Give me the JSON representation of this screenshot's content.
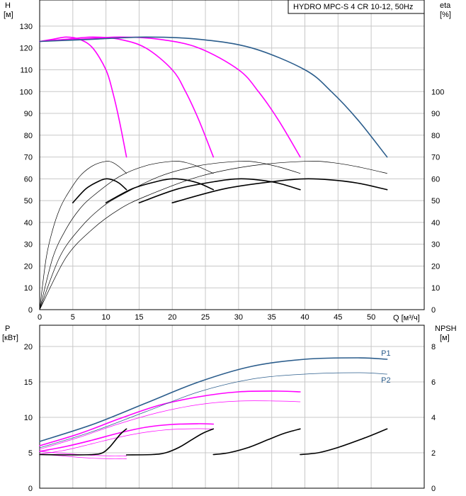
{
  "chart_data": [
    {
      "type": "line",
      "title": "HYDRO MPC-S 4 CR 10-12, 50Hz",
      "xlabel": "Q [м³/ч]",
      "ylabel": "H [м]",
      "ylabel_line1": "H",
      "ylabel_line2": "[м]",
      "y2label_line1": "eta",
      "y2label_line2": "[%]",
      "xlim": [
        0,
        58
      ],
      "ylim": [
        0,
        142
      ],
      "xticks": [
        0,
        5,
        10,
        15,
        20,
        25,
        30,
        35,
        40,
        45,
        50
      ],
      "xtick_labels": [
        "0",
        "5",
        "10",
        "15",
        "20",
        "25",
        "30",
        "35",
        "40",
        "45",
        "50"
      ],
      "yticks": [
        0,
        10,
        20,
        30,
        40,
        50,
        60,
        70,
        80,
        90,
        100,
        110,
        120,
        130
      ],
      "ytick_labels": [
        "0",
        "10",
        "20",
        "30",
        "40",
        "50",
        "60",
        "70",
        "80",
        "90",
        "100",
        "110",
        "120",
        "130"
      ],
      "y2ticks": [
        0,
        10,
        20,
        30,
        40,
        50,
        60,
        70,
        80,
        90,
        100
      ],
      "y2tick_labels": [
        "0",
        "10",
        "20",
        "30",
        "40",
        "50",
        "60",
        "70",
        "80",
        "90",
        "100"
      ],
      "series": [
        {
          "name": "H 1 pump",
          "color": "#ff00ff",
          "width": 1.6,
          "x": [
            0,
            2,
            4,
            6,
            8,
            10,
            11,
            12,
            13.1
          ],
          "y": [
            123,
            124,
            125,
            124,
            120,
            110,
            100,
            87,
            70
          ]
        },
        {
          "name": "H 2 pumps",
          "color": "#ff00ff",
          "width": 1.6,
          "x": [
            0,
            4,
            8,
            12,
            16,
            20,
            22,
            24,
            26.2
          ],
          "y": [
            123,
            124,
            125,
            124,
            120,
            110,
            100,
            87,
            70
          ]
        },
        {
          "name": "H 3 pumps",
          "color": "#ff00ff",
          "width": 1.6,
          "x": [
            0,
            6,
            12,
            18,
            24,
            30,
            33,
            36,
            39.3
          ],
          "y": [
            123,
            124,
            125,
            124,
            120,
            110,
            100,
            87,
            70
          ]
        },
        {
          "name": "H 4 pumps",
          "color": "#2b5d8c",
          "width": 1.6,
          "x": [
            0,
            8,
            16,
            24,
            32,
            40,
            44,
            48,
            52.4
          ],
          "y": [
            123,
            124,
            125,
            124,
            120,
            110,
            100,
            87,
            70
          ]
        },
        {
          "name": "eta 1 pump",
          "color": "#000000",
          "width": 0.7,
          "x": [
            0,
            1,
            2,
            3,
            4,
            6,
            8,
            10,
            11,
            12,
            13.1
          ],
          "y": [
            0,
            24,
            37,
            46,
            52,
            61,
            66,
            68,
            67.5,
            65.5,
            62.5
          ]
        },
        {
          "name": "eta 2 pumps",
          "color": "#000000",
          "width": 0.7,
          "x": [
            0,
            2,
            4,
            6,
            8,
            12,
            16,
            20,
            22,
            24,
            26.2
          ],
          "y": [
            0,
            24,
            37,
            46,
            52,
            61,
            66,
            68,
            67.5,
            65.5,
            62.5
          ]
        },
        {
          "name": "eta 3 pumps",
          "color": "#000000",
          "width": 0.7,
          "x": [
            0,
            3,
            6,
            9,
            12,
            18,
            24,
            30,
            33,
            36,
            39.3
          ],
          "y": [
            0,
            24,
            37,
            46,
            52,
            61,
            66,
            68,
            67.5,
            65.5,
            62.5
          ]
        },
        {
          "name": "eta 4 pumps",
          "color": "#000000",
          "width": 0.7,
          "x": [
            0,
            4,
            8,
            12,
            16,
            24,
            32,
            40,
            44,
            48,
            52.4
          ],
          "y": [
            0,
            24,
            37,
            46,
            52,
            61,
            66,
            68,
            67.5,
            65.5,
            62.5
          ]
        },
        {
          "name": "eta 1 pump (duty)",
          "color": "#000000",
          "width": 1.6,
          "x": [
            5,
            7,
            9,
            10,
            11,
            12,
            13.1
          ],
          "y": [
            49,
            55.5,
            59,
            60,
            59.5,
            58,
            55
          ]
        },
        {
          "name": "eta 2 pumps (duty)",
          "color": "#000000",
          "width": 1.6,
          "x": [
            10,
            14,
            18,
            20,
            22,
            24,
            26.2
          ],
          "y": [
            49,
            55.5,
            59,
            60,
            59.5,
            58,
            55
          ]
        },
        {
          "name": "eta 3 pumps (duty)",
          "color": "#000000",
          "width": 1.6,
          "x": [
            15,
            21,
            27,
            30,
            33,
            36,
            39.3
          ],
          "y": [
            49,
            55.5,
            59,
            60,
            59.5,
            58,
            55
          ]
        },
        {
          "name": "eta 4 pumps (duty)",
          "color": "#000000",
          "width": 1.6,
          "x": [
            20,
            28,
            36,
            40,
            44,
            48,
            52.4
          ],
          "y": [
            49,
            55.5,
            59,
            60,
            59.5,
            58,
            55
          ]
        }
      ]
    },
    {
      "type": "line",
      "xlim": [
        0,
        58
      ],
      "ylim": [
        0,
        23
      ],
      "y2lim": [
        0,
        9.2
      ],
      "ylabel_line1": "P",
      "ylabel_line2": "[кВт]",
      "y2label_line1": "NPSH",
      "y2label_line2": "[м]",
      "yticks": [
        0,
        5,
        10,
        15,
        20
      ],
      "ytick_labels": [
        "0",
        "5",
        "10",
        "15",
        "20"
      ],
      "y2ticks": [
        0,
        2,
        4,
        6,
        8
      ],
      "y2tick_labels": [
        "0",
        "2",
        "4",
        "6",
        "8"
      ],
      "annotations": [
        {
          "text": "P1",
          "x": 51.5,
          "y": 19.1,
          "color": "#2b5d8c"
        },
        {
          "text": "P2",
          "x": 51.5,
          "y": 15.3,
          "color": "#2b5d8c"
        }
      ],
      "series": [
        {
          "name": "P1 1 pump",
          "color": "#ff00ff",
          "width": 0.7,
          "x": [
            0,
            3,
            6,
            9,
            12,
            13.1
          ],
          "y": [
            5.2,
            4.95,
            4.75,
            4.6,
            4.55,
            4.55
          ]
        },
        {
          "name": "P2 1 pump",
          "color": "#ff00ff",
          "width": 0.7,
          "x": [
            0,
            3,
            6,
            9,
            12,
            13.1
          ],
          "y": [
            4.8,
            4.6,
            4.35,
            4.2,
            4.15,
            4.15
          ]
        },
        {
          "name": "P1 2 pumps",
          "color": "#ff00ff",
          "width": 1.6,
          "x": [
            0,
            4,
            8,
            12,
            16,
            20,
            24,
            26.2
          ],
          "y": [
            5.2,
            5.9,
            6.8,
            7.8,
            8.6,
            9.0,
            9.1,
            9.05
          ]
        },
        {
          "name": "P2 2 pumps",
          "color": "#ff00ff",
          "width": 0.7,
          "x": [
            0,
            4,
            8,
            12,
            16,
            20,
            24,
            26.2
          ],
          "y": [
            4.8,
            5.4,
            6.3,
            7.2,
            7.9,
            8.3,
            8.4,
            8.35
          ]
        },
        {
          "name": "P1 3 pumps",
          "color": "#ff00ff",
          "width": 1.6,
          "x": [
            0,
            6,
            12,
            18,
            24,
            30,
            36,
            39.3
          ],
          "y": [
            6.0,
            7.7,
            9.8,
            11.7,
            12.9,
            13.6,
            13.7,
            13.6
          ]
        },
        {
          "name": "P2 3 pumps",
          "color": "#ff00ff",
          "width": 0.7,
          "x": [
            0,
            6,
            12,
            18,
            24,
            30,
            36,
            39.3
          ],
          "y": [
            5.5,
            7.2,
            9.1,
            10.7,
            11.8,
            12.3,
            12.3,
            12.2
          ]
        },
        {
          "name": "P1 4 pumps",
          "color": "#2b5d8c",
          "width": 1.6,
          "x": [
            0,
            8,
            16,
            24,
            32,
            40,
            48,
            52.4
          ],
          "y": [
            6.6,
            9.0,
            12.0,
            15.0,
            17.2,
            18.2,
            18.4,
            18.2
          ]
        },
        {
          "name": "P2 4 pumps",
          "color": "#2b5d8c",
          "width": 0.7,
          "x": [
            0,
            8,
            16,
            24,
            32,
            40,
            48,
            52.4
          ],
          "y": [
            5.7,
            8.0,
            10.8,
            13.6,
            15.4,
            16.1,
            16.3,
            16.1
          ]
        },
        {
          "name": "NPSH 1 pump",
          "color": "#000000",
          "width": 1.6,
          "axis": "y2",
          "x": [
            0,
            4,
            8,
            9.5,
            10.5,
            11.5,
            12.3,
            13.1
          ],
          "y": [
            1.9,
            1.88,
            1.9,
            2.0,
            2.3,
            2.75,
            3.1,
            3.35
          ]
        },
        {
          "name": "NPSH 2 pumps",
          "color": "#000000",
          "width": 1.6,
          "axis": "y2",
          "x": [
            13.1,
            17,
            19,
            21,
            23,
            24.6,
            26.2
          ],
          "y": [
            1.88,
            1.9,
            2.0,
            2.3,
            2.75,
            3.1,
            3.35
          ]
        },
        {
          "name": "NPSH 3 pumps",
          "color": "#000000",
          "width": 1.6,
          "axis": "y2",
          "x": [
            26.2,
            28.5,
            31.5,
            34.5,
            36.9,
            39.3
          ],
          "y": [
            1.9,
            2.0,
            2.3,
            2.75,
            3.1,
            3.35
          ]
        },
        {
          "name": "NPSH 4 pumps",
          "color": "#000000",
          "width": 1.6,
          "axis": "y2",
          "x": [
            39.3,
            42,
            45,
            49.1,
            52.4
          ],
          "y": [
            1.9,
            2.0,
            2.3,
            2.85,
            3.35
          ]
        }
      ]
    }
  ]
}
